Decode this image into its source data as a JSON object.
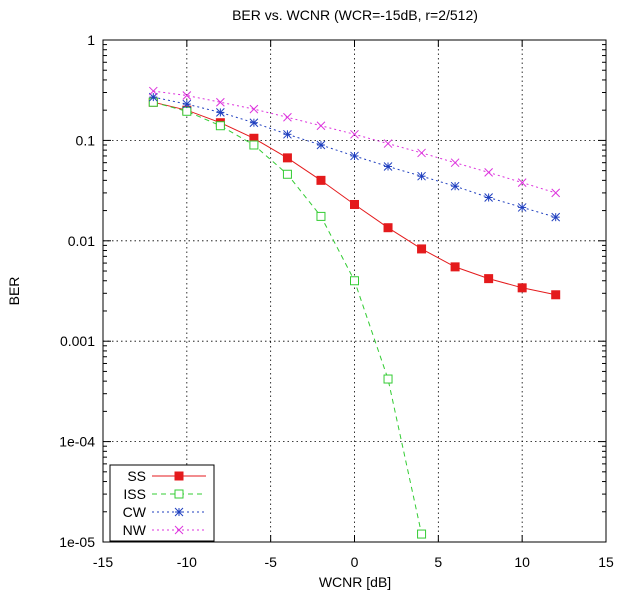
{
  "chart_data": {
    "type": "line",
    "title": "BER vs. WCNR (WCR=-15dB, r=2/512)",
    "xlabel": "WCNR [dB]",
    "ylabel": "BER",
    "xlim": [
      -15,
      15
    ],
    "ylim": [
      1e-05,
      1
    ],
    "yscale": "log",
    "grid": true,
    "legend_position": "bottom-left",
    "x_ticks": [
      -15,
      -10,
      -5,
      0,
      5,
      10,
      15
    ],
    "x_tick_labels": [
      "-15",
      "-10",
      "-5",
      "0",
      "5",
      "10",
      "15"
    ],
    "y_ticks": [
      1e-05,
      0.0001,
      0.001,
      0.01,
      0.1,
      1
    ],
    "y_tick_labels": [
      "1e-05",
      "1e-04",
      "0.001",
      "0.01",
      "0.1",
      "1"
    ],
    "series": [
      {
        "name": "SS",
        "color": "#e41a1c",
        "line_style": "solid",
        "marker": "filled-square",
        "x": [
          -12,
          -10,
          -8,
          -6,
          -4,
          -2,
          0,
          2,
          4,
          6,
          8,
          10,
          12
        ],
        "y": [
          0.24,
          0.2,
          0.15,
          0.105,
          0.067,
          0.04,
          0.023,
          0.0135,
          0.0083,
          0.0055,
          0.0042,
          0.0034,
          0.0029
        ]
      },
      {
        "name": "ISS",
        "color": "#33cc33",
        "line_style": "dashed",
        "marker": "open-square",
        "x": [
          -12,
          -10,
          -8,
          -6,
          -4,
          -2,
          0,
          2,
          4
        ],
        "y": [
          0.24,
          0.195,
          0.14,
          0.09,
          0.046,
          0.0175,
          0.004,
          0.00042,
          1.2e-05
        ]
      },
      {
        "name": "CW",
        "color": "#1f3fbf",
        "line_style": "dotted",
        "marker": "asterisk",
        "x": [
          -12,
          -10,
          -8,
          -6,
          -4,
          -2,
          0,
          2,
          4,
          6,
          8,
          10,
          12
        ],
        "y": [
          0.27,
          0.23,
          0.19,
          0.15,
          0.115,
          0.09,
          0.07,
          0.055,
          0.044,
          0.035,
          0.027,
          0.0215,
          0.0172
        ]
      },
      {
        "name": "NW",
        "color": "#dd33dd",
        "line_style": "dotted",
        "marker": "cross",
        "x": [
          -12,
          -10,
          -8,
          -6,
          -4,
          -2,
          0,
          2,
          4,
          6,
          8,
          10,
          12
        ],
        "y": [
          0.31,
          0.28,
          0.24,
          0.205,
          0.17,
          0.14,
          0.115,
          0.093,
          0.075,
          0.06,
          0.048,
          0.038,
          0.03
        ]
      }
    ]
  }
}
